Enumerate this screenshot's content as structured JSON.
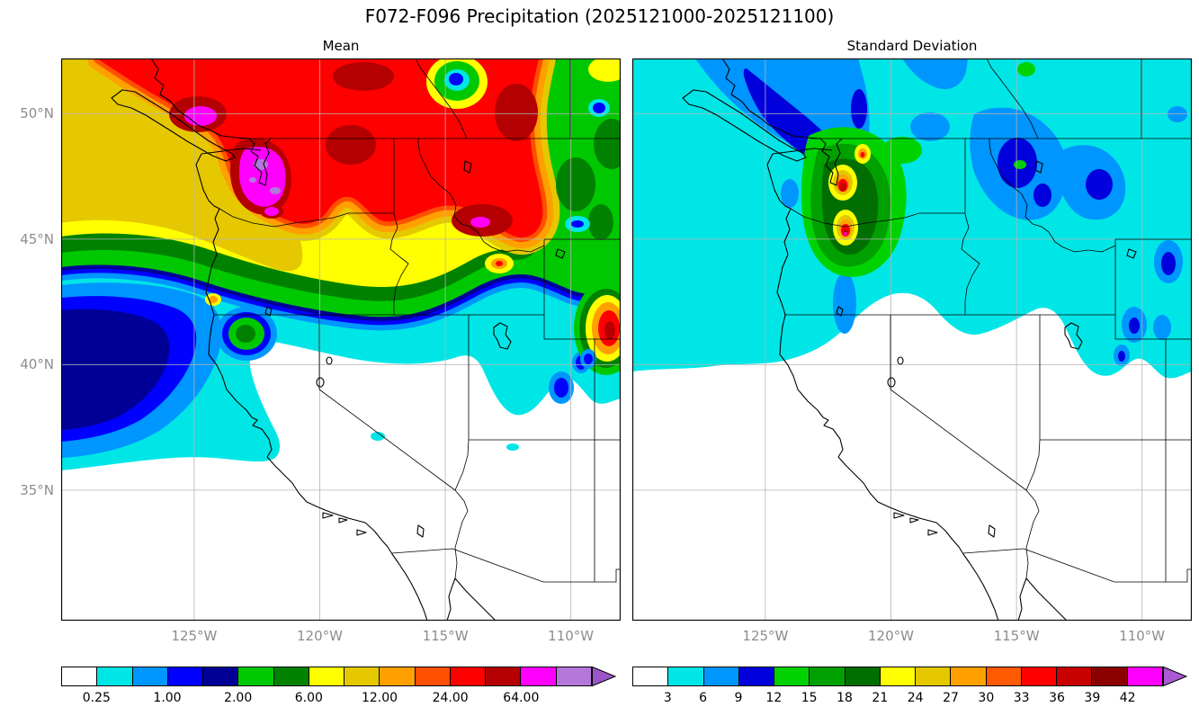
{
  "title": "F072-F096 Precipitation (2025121000-2025121100)",
  "panels": {
    "mean": {
      "subtitle": "Mean"
    },
    "std": {
      "subtitle": "Standard Deviation"
    }
  },
  "axes": {
    "y_tick_labels": [
      "50°N",
      "45°N",
      "40°N",
      "35°N"
    ],
    "x_tick_labels": [
      "125°W",
      "120°W",
      "115°W",
      "110°W"
    ]
  },
  "colorbars": {
    "mean": {
      "labels": [
        "0.25",
        "1.00",
        "2.00",
        "6.00",
        "12.00",
        "24.00",
        "64.00"
      ],
      "label_positions_pct": [
        6.67,
        20,
        33.33,
        46.67,
        60,
        73.33,
        86.67
      ],
      "colors": [
        "#ffffff",
        "#00e6e6",
        "#0096ff",
        "#0000ff",
        "#000096",
        "#00c800",
        "#008200",
        "#ffff00",
        "#e6c800",
        "#ffa000",
        "#ff5000",
        "#ff0000",
        "#b40000",
        "#ff00ff",
        "#b478dc"
      ],
      "arrow_color": "#9b55c8"
    },
    "std": {
      "labels": [
        "3",
        "6",
        "9",
        "12",
        "15",
        "18",
        "21",
        "24",
        "27",
        "30",
        "33",
        "36",
        "39",
        "42"
      ],
      "label_positions_pct": [
        6.67,
        13.33,
        20,
        26.67,
        33.33,
        40,
        46.67,
        53.33,
        60,
        66.67,
        73.33,
        80,
        86.67,
        93.33
      ],
      "colors": [
        "#ffffff",
        "#00e6e6",
        "#0096ff",
        "#0000dc",
        "#00d200",
        "#00a000",
        "#006e00",
        "#ffff00",
        "#e6c800",
        "#ffa000",
        "#ff5a00",
        "#ff0000",
        "#c80000",
        "#8c0000",
        "#ff00ff"
      ],
      "arrow_color": "#aa5ad2"
    }
  },
  "chart_data": [
    {
      "type": "heatmap",
      "variant": "filled-contour-map",
      "title": "Mean",
      "x_tick_labels": [
        "125°W",
        "120°W",
        "115°W",
        "110°W"
      ],
      "y_tick_labels": [
        "50°N",
        "45°N",
        "40°N",
        "35°N"
      ],
      "approx_extent": {
        "west": "130°W",
        "east": "108°W",
        "south": "30°N",
        "north": "52°N"
      },
      "colorbar_tick_levels": [
        0.25,
        1.0,
        2.0,
        6.0,
        12.0,
        24.0,
        64.0
      ],
      "palette": [
        "#ffffff",
        "#00e6e6",
        "#0096ff",
        "#0000ff",
        "#000096",
        "#00c800",
        "#008200",
        "#ffff00",
        "#e6c800",
        "#ffa000",
        "#ff5000",
        "#ff0000",
        "#b40000",
        "#ff00ff",
        "#b478dc"
      ],
      "over_arrow_color": "#9b55c8",
      "description": "Heaviest precipitation (red > 24 with dark-red and magenta > 64 cores) over the BC coast / Vancouver Island, the Washington Cascades, northeast Washington, central Idaho and western Montana; gold/orange maximum band over the offshore Pacific Northwest waters; secondary red maximum near Yellowstone / western Wyoming at the right edge; a blue/dark-blue minimum band offshore southern Oregon and northern California; values below 0.25 (white) over most of California, Nevada, Utah and Arizona; green 2-6 background over Montana and the northeast corner."
    },
    {
      "type": "heatmap",
      "variant": "filled-contour-map",
      "title": "Standard Deviation",
      "x_tick_labels": [
        "125°W",
        "120°W",
        "115°W",
        "110°W"
      ],
      "y_tick_labels": [
        "50°N",
        "45°N",
        "40°N",
        "35°N"
      ],
      "approx_extent": {
        "west": "130°W",
        "east": "108°W",
        "south": "30°N",
        "north": "52°N"
      },
      "colorbar_tick_levels": [
        3,
        6,
        9,
        12,
        15,
        18,
        21,
        24,
        27,
        30,
        33,
        36,
        39,
        42
      ],
      "palette": [
        "#ffffff",
        "#00e6e6",
        "#0096ff",
        "#0000dc",
        "#00d200",
        "#00a000",
        "#006e00",
        "#ffff00",
        "#e6c800",
        "#ffa000",
        "#ff5a00",
        "#ff0000",
        "#c80000",
        "#8c0000",
        "#ff00ff"
      ],
      "over_arrow_color": "#aa5ad2",
      "description": "Spread below 3 (white) over the southern half of the domain; 3-6 (cyan) across the Pacific Northwest, offshore waters and northern Rockies; 6-12 (blue / dark-blue) patches over Vancouver Island and the BC coast, northern Idaho, western Montana, the Utah Wasatch and near Yellowstone; maximum over the Washington Cascades where a green 12-21 region contains yellow/orange/red cores reaching dark red (33-39)."
    }
  ]
}
